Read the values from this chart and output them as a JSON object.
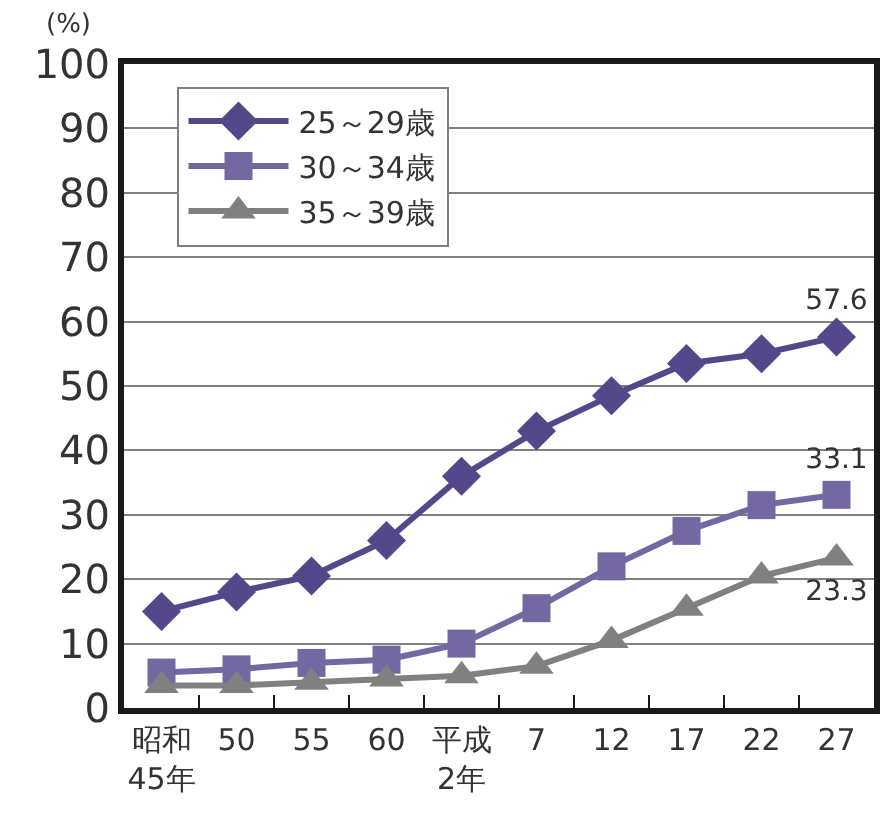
{
  "chart_data": {
    "type": "line",
    "ylabel": "(%)",
    "categories": [
      "昭和\n45年",
      "50",
      "55",
      "60",
      "平成\n2年",
      "7",
      "12",
      "17",
      "22",
      "27"
    ],
    "ylim": [
      0,
      100
    ],
    "yticks": [
      0,
      10,
      20,
      30,
      40,
      50,
      60,
      70,
      80,
      90,
      100
    ],
    "grid": "y",
    "legend": "top left",
    "series": [
      {
        "name": "25～29歳",
        "color": "#54488a",
        "marker": "diamond",
        "values": [
          15.0,
          18.0,
          20.5,
          26.0,
          36.0,
          43.0,
          48.5,
          53.5,
          55.0,
          57.6
        ],
        "value_labels": [
          null,
          null,
          null,
          null,
          null,
          null,
          null,
          null,
          null,
          "57.6"
        ]
      },
      {
        "name": "30～34歳",
        "color": "#7468a3",
        "marker": "square",
        "values": [
          5.5,
          6.0,
          7.0,
          7.5,
          10.0,
          15.5,
          22.0,
          27.5,
          31.5,
          33.1
        ],
        "value_labels": [
          null,
          null,
          null,
          null,
          null,
          null,
          null,
          null,
          null,
          "33.1"
        ]
      },
      {
        "name": "35～39歳",
        "color": "#808080",
        "marker": "triangle",
        "values": [
          3.5,
          3.5,
          4.0,
          4.5,
          5.0,
          6.5,
          10.5,
          15.5,
          20.5,
          23.3
        ],
        "value_labels": [
          null,
          null,
          null,
          null,
          null,
          null,
          null,
          null,
          null,
          "23.3"
        ]
      }
    ]
  }
}
